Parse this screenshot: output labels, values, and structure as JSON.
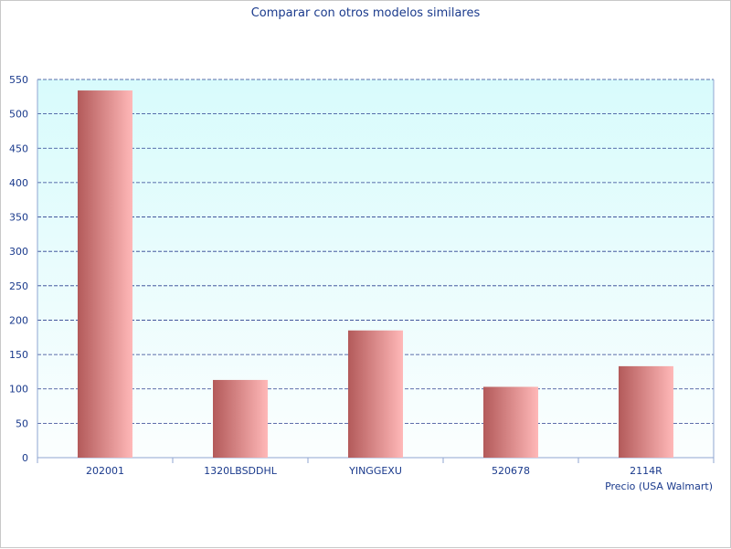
{
  "chart_data": {
    "type": "bar",
    "title": "Comparar con otros modelos similares",
    "xlabel": "Precio (USA Walmart)",
    "ylabel": "",
    "categories": [
      "202001",
      "1320LBSDDHL",
      "YINGGEXU",
      "520678",
      "2114R"
    ],
    "values": [
      534,
      113,
      185,
      103,
      133
    ],
    "ylim": [
      0,
      550
    ],
    "yticks": [
      0,
      50,
      100,
      150,
      200,
      250,
      300,
      350,
      400,
      450,
      500,
      550
    ],
    "grid": true,
    "legend": "none"
  },
  "colors": {
    "bar_dark": "#b35a5a",
    "bar_light": "#ffb8b8",
    "plot_bg_top": "#d8fbfc",
    "plot_bg_bottom": "#fbfefe",
    "grid": "#2a3f8f",
    "axis": "#8fa6d2",
    "text": "#1a3a8c"
  }
}
